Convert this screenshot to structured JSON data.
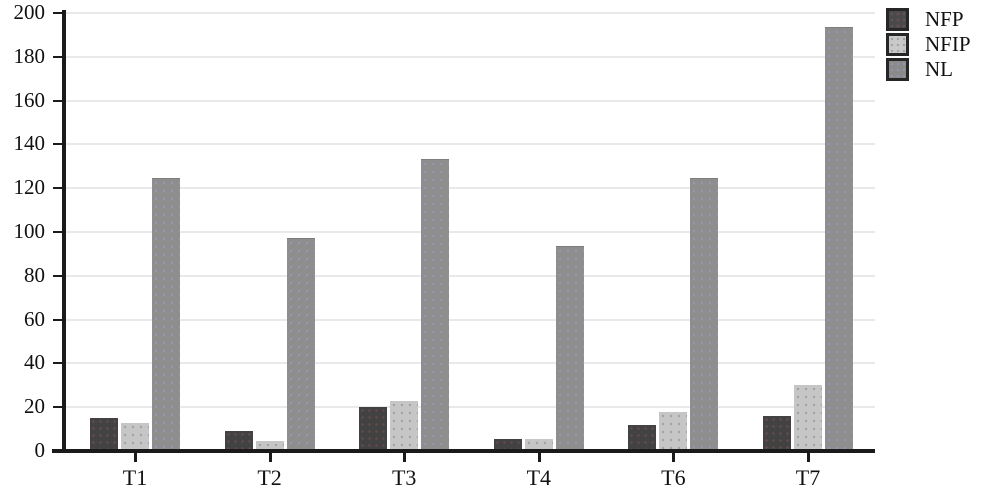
{
  "chart_data": {
    "type": "bar",
    "title": "",
    "xlabel": "",
    "ylabel": "",
    "categories": [
      "T1",
      "T2",
      "T3",
      "T4",
      "T6",
      "T7"
    ],
    "series": [
      {
        "name": "NFP",
        "color": "#424242",
        "values": [
          15,
          9,
          20,
          5.5,
          12,
          16
        ]
      },
      {
        "name": "NFIP",
        "color": "#c6c6c6",
        "values": [
          13,
          4.5,
          23,
          5.5,
          18,
          30
        ]
      },
      {
        "name": "NL",
        "color": "#8e8e8e",
        "values": [
          124,
          97,
          133,
          93,
          124,
          193
        ]
      }
    ],
    "ylim": [
      0,
      200
    ],
    "yticks": [
      0,
      20,
      40,
      60,
      80,
      100,
      120,
      140,
      160,
      180,
      200
    ],
    "grid": true,
    "grid_color": "#e9e9e9",
    "axis_color": "#1a1a1a",
    "legend_position": "top-right",
    "legend_items": [
      "NFP",
      "NFIP",
      "NL"
    ]
  }
}
